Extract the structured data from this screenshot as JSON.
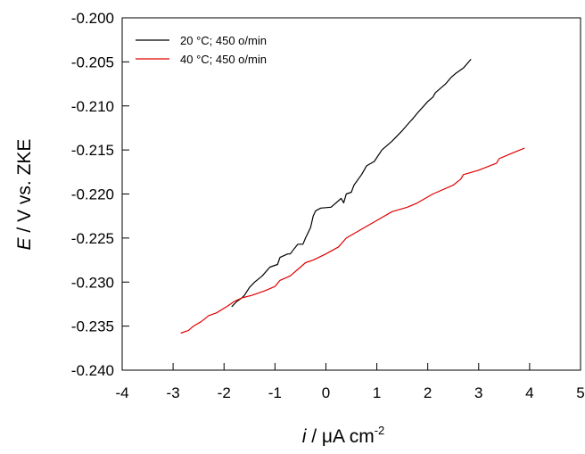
{
  "chart_data": {
    "type": "line",
    "title": "",
    "xlabel": {
      "italic": "i",
      "rest": " / μA cm",
      "sup": "-2"
    },
    "ylabel": {
      "italic": "E",
      "rest": " / V vs. ZKE"
    },
    "xlim": [
      -4,
      5
    ],
    "ylim": [
      -0.24,
      -0.2
    ],
    "xticks": [
      "-4",
      "-3",
      "-2",
      "-1",
      "0",
      "1",
      "2",
      "3",
      "4",
      "5"
    ],
    "yticks": [
      "-0.200",
      "-0.205",
      "-0.210",
      "-0.215",
      "-0.220",
      "-0.225",
      "-0.230",
      "-0.235",
      "-0.240"
    ],
    "grid": false,
    "legend_position": "top-left",
    "series": [
      {
        "name": "20 °C; 450 o/min",
        "color": "#000000",
        "points": [
          [
            -1.85,
            -0.2328
          ],
          [
            -1.75,
            -0.2322
          ],
          [
            -1.65,
            -0.2318
          ],
          [
            -1.6,
            -0.2315
          ],
          [
            -1.5,
            -0.2306
          ],
          [
            -1.4,
            -0.23
          ],
          [
            -1.25,
            -0.2293
          ],
          [
            -1.1,
            -0.2283
          ],
          [
            -0.95,
            -0.228
          ],
          [
            -0.9,
            -0.2272
          ],
          [
            -0.75,
            -0.2268
          ],
          [
            -0.7,
            -0.2268
          ],
          [
            -0.62,
            -0.2262
          ],
          [
            -0.55,
            -0.2257
          ],
          [
            -0.45,
            -0.2257
          ],
          [
            -0.4,
            -0.225
          ],
          [
            -0.3,
            -0.2238
          ],
          [
            -0.25,
            -0.2225
          ],
          [
            -0.2,
            -0.2219
          ],
          [
            -0.1,
            -0.2216
          ],
          [
            0.1,
            -0.2215
          ],
          [
            0.3,
            -0.2205
          ],
          [
            0.35,
            -0.221
          ],
          [
            0.4,
            -0.22
          ],
          [
            0.5,
            -0.2198
          ],
          [
            0.55,
            -0.219
          ],
          [
            0.7,
            -0.2178
          ],
          [
            0.8,
            -0.2168
          ],
          [
            0.95,
            -0.2163
          ],
          [
            1.1,
            -0.215
          ],
          [
            1.3,
            -0.214
          ],
          [
            1.5,
            -0.2128
          ],
          [
            1.65,
            -0.2118
          ],
          [
            1.7,
            -0.2115
          ],
          [
            1.8,
            -0.2108
          ],
          [
            2.0,
            -0.2095
          ],
          [
            2.1,
            -0.209
          ],
          [
            2.15,
            -0.2085
          ],
          [
            2.35,
            -0.2075
          ],
          [
            2.45,
            -0.2068
          ],
          [
            2.55,
            -0.2063
          ],
          [
            2.7,
            -0.2057
          ],
          [
            2.85,
            -0.2047
          ]
        ]
      },
      {
        "name": "40 °C; 450 o/min",
        "color": "#e00000",
        "points": [
          [
            -2.85,
            -0.2358
          ],
          [
            -2.7,
            -0.2355
          ],
          [
            -2.6,
            -0.235
          ],
          [
            -2.45,
            -0.2345
          ],
          [
            -2.3,
            -0.2338
          ],
          [
            -2.15,
            -0.2335
          ],
          [
            -1.95,
            -0.2328
          ],
          [
            -1.8,
            -0.2322
          ],
          [
            -1.65,
            -0.2318
          ],
          [
            -1.45,
            -0.2315
          ],
          [
            -1.2,
            -0.231
          ],
          [
            -1.0,
            -0.2305
          ],
          [
            -0.9,
            -0.2298
          ],
          [
            -0.7,
            -0.2293
          ],
          [
            -0.5,
            -0.2283
          ],
          [
            -0.4,
            -0.2278
          ],
          [
            -0.25,
            -0.2275
          ],
          [
            0.0,
            -0.2268
          ],
          [
            0.25,
            -0.226
          ],
          [
            0.4,
            -0.225
          ],
          [
            0.7,
            -0.224
          ],
          [
            1.0,
            -0.223
          ],
          [
            1.3,
            -0.222
          ],
          [
            1.6,
            -0.2215
          ],
          [
            1.8,
            -0.221
          ],
          [
            2.1,
            -0.22
          ],
          [
            2.5,
            -0.219
          ],
          [
            2.65,
            -0.2183
          ],
          [
            2.7,
            -0.2178
          ],
          [
            3.0,
            -0.2173
          ],
          [
            3.35,
            -0.2165
          ],
          [
            3.4,
            -0.216
          ],
          [
            3.6,
            -0.2155
          ],
          [
            3.9,
            -0.2148
          ]
        ]
      }
    ]
  }
}
